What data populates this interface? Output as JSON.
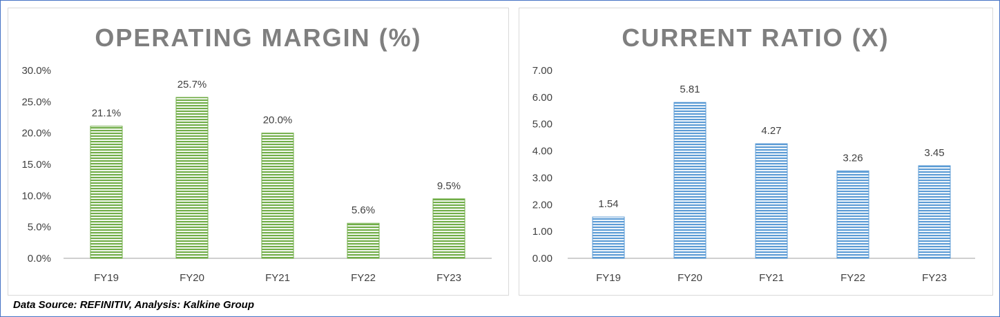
{
  "colors": {
    "green": "#70AD47",
    "blue": "#5B9BD5",
    "frame": "#4472C4"
  },
  "source_text": "Data Source: REFINITIV, Analysis: Kalkine Group",
  "chart_data": [
    {
      "type": "bar",
      "title": "OPERATING MARGIN (%)",
      "categories": [
        "FY19",
        "FY20",
        "FY21",
        "FY22",
        "FY23"
      ],
      "values": [
        21.1,
        25.7,
        20.0,
        5.6,
        9.5
      ],
      "value_labels": [
        "21.1%",
        "25.7%",
        "20.0%",
        "5.6%",
        "9.5%"
      ],
      "ylim": [
        0,
        30
      ],
      "yticks": [
        0,
        5,
        10,
        15,
        20,
        25,
        30
      ],
      "ytick_labels": [
        "0.0%",
        "5.0%",
        "10.0%",
        "15.0%",
        "20.0%",
        "25.0%",
        "30.0%"
      ],
      "color": "#70AD47",
      "grid": false
    },
    {
      "type": "bar",
      "title": "CURRENT RATIO (X)",
      "categories": [
        "FY19",
        "FY20",
        "FY21",
        "FY22",
        "FY23"
      ],
      "values": [
        1.54,
        5.81,
        4.27,
        3.26,
        3.45
      ],
      "value_labels": [
        "1.54",
        "5.81",
        "4.27",
        "3.26",
        "3.45"
      ],
      "ylim": [
        0,
        7
      ],
      "yticks": [
        0,
        1,
        2,
        3,
        4,
        5,
        6,
        7
      ],
      "ytick_labels": [
        "0.00",
        "1.00",
        "2.00",
        "3.00",
        "4.00",
        "5.00",
        "6.00",
        "7.00"
      ],
      "color": "#5B9BD5",
      "grid": false
    }
  ]
}
